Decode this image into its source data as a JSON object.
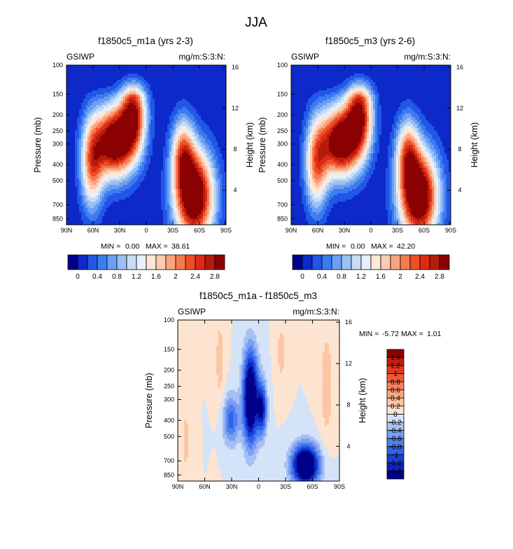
{
  "figure_title": "JJA",
  "colors": {
    "abs_scale": [
      "#00008b",
      "#0d29c9",
      "#2156e6",
      "#3d7cf0",
      "#6b9ff2",
      "#9bc0f3",
      "#c6dcf6",
      "#e6f0fb",
      "#fde7d6",
      "#fbcab0",
      "#f9a47f",
      "#f57a51",
      "#ee4e26",
      "#dd2a16",
      "#b51b0b",
      "#8b0000"
    ],
    "diff_scale": [
      "#00008b",
      "#0d23b8",
      "#1a3fd6",
      "#2f62ea",
      "#4d80f0",
      "#7a9ff2",
      "#a6c0f4",
      "#d4e3f8",
      "#fde4d0",
      "#fbc6a3",
      "#f9a67c",
      "#f5815a",
      "#ee5a38",
      "#e23a20",
      "#c31f0e",
      "#8b0000"
    ]
  },
  "chart_data": [
    {
      "type": "heatmap",
      "title": "f1850c5_m1a (yrs 2-3)",
      "left_label": "GSIWP",
      "right_label": "mg/m:S:3:N:",
      "xlabel": "",
      "ylabel": "Pressure (mb)",
      "ylabel_right": "Height (km)",
      "x_ticks": [
        "90N",
        "60N",
        "30N",
        "0",
        "30S",
        "60S",
        "90S"
      ],
      "y_ticks": [
        "100",
        "150",
        "200",
        "250",
        "300",
        "400",
        "500",
        "700",
        "850"
      ],
      "y_ticks_right": [
        "16",
        "12",
        "8",
        "4"
      ],
      "stats": {
        "min_label": "MIN =",
        "min": "0.00",
        "max_label": "MAX =",
        "max": "38.61"
      },
      "colorbar_labels": [
        "0",
        "0.4",
        "0.8",
        "1.2",
        "1.6",
        "2",
        "2.4",
        "2.8"
      ],
      "colorbar_levels": [
        0,
        0.2,
        0.4,
        0.6,
        0.8,
        1.0,
        1.2,
        1.4,
        1.6,
        1.8,
        2.0,
        2.2,
        2.4,
        2.6,
        2.8
      ]
    },
    {
      "type": "heatmap",
      "title": "f1850c5_m3 (yrs 2-6)",
      "left_label": "GSIWP",
      "right_label": "mg/m:S:3:N:",
      "xlabel": "",
      "ylabel": "Pressure (mb)",
      "ylabel_right": "Height (km)",
      "x_ticks": [
        "90N",
        "60N",
        "30N",
        "0",
        "30S",
        "60S",
        "90S"
      ],
      "y_ticks": [
        "100",
        "150",
        "200",
        "250",
        "300",
        "400",
        "500",
        "700",
        "850"
      ],
      "y_ticks_right": [
        "16",
        "12",
        "8",
        "4"
      ],
      "stats": {
        "min_label": "MIN =",
        "min": "0.00",
        "max_label": "MAX =",
        "max": "42.20"
      },
      "colorbar_labels": [
        "0",
        "0.4",
        "0.8",
        "1.2",
        "1.6",
        "2",
        "2.4",
        "2.8"
      ],
      "colorbar_levels": [
        0,
        0.2,
        0.4,
        0.6,
        0.8,
        1.0,
        1.2,
        1.4,
        1.6,
        1.8,
        2.0,
        2.2,
        2.4,
        2.6,
        2.8
      ]
    },
    {
      "type": "heatmap",
      "title": "f1850c5_m1a - f1850c5_m3",
      "left_label": "GSIWP",
      "right_label": "mg/m:S:3:N:",
      "xlabel": "",
      "ylabel": "Pressure (mb)",
      "ylabel_right": "Height (km)",
      "x_ticks": [
        "90N",
        "60N",
        "30N",
        "0",
        "30S",
        "60S",
        "90S"
      ],
      "y_ticks": [
        "100",
        "150",
        "200",
        "250",
        "300",
        "400",
        "500",
        "700",
        "850"
      ],
      "y_ticks_right": [
        "16",
        "12",
        "8",
        "4"
      ],
      "stats": {
        "min_label": "MIN =",
        "min": "-5.72",
        "max_label": "MAX =",
        "max": "1.01"
      },
      "colorbar_labels": [
        "1.4",
        "1.2",
        "1",
        "0.8",
        "0.6",
        "0.4",
        "0.2",
        "0",
        "-0.2",
        "-0.4",
        "-0.6",
        "-0.8",
        "-1",
        "-1.2",
        "-1.4"
      ],
      "colorbar_levels": [
        -1.4,
        -1.2,
        -1.0,
        -0.8,
        -0.6,
        -0.4,
        -0.2,
        0,
        0.2,
        0.4,
        0.6,
        0.8,
        1.0,
        1.2,
        1.4
      ]
    }
  ]
}
